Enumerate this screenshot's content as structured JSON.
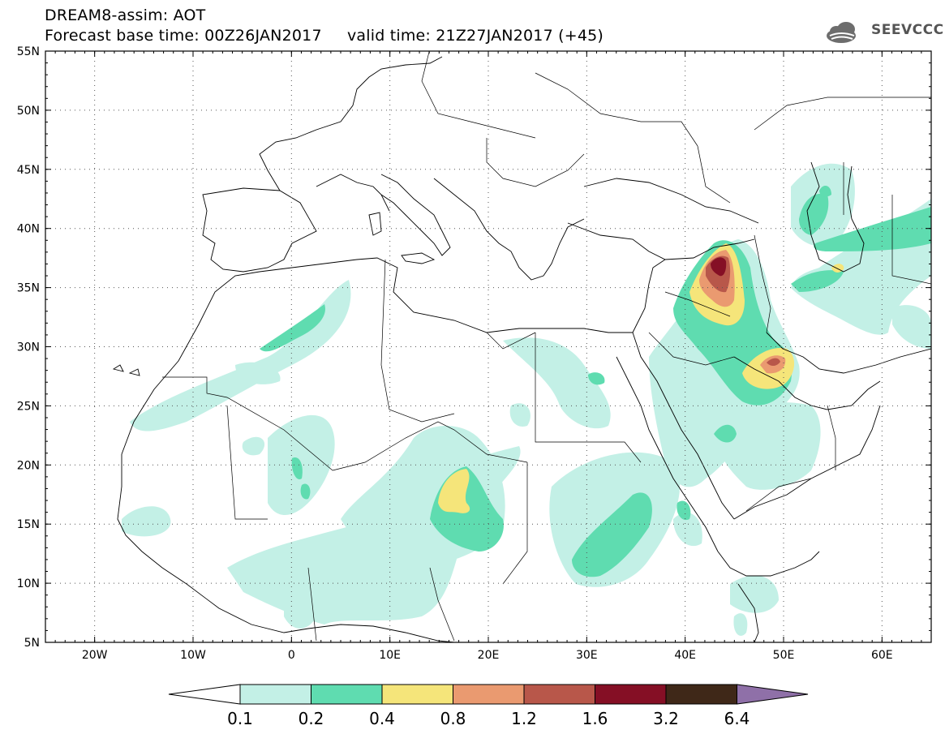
{
  "header": {
    "line1": "DREAM8-assim: AOT",
    "base_time_label": "Forecast base time: 00Z26JAN2017",
    "valid_time_label": "valid time: 21Z27JAN2017 (+45)"
  },
  "logo": {
    "text": "SEEVCCC",
    "icon": "cloud-icon"
  },
  "map": {
    "lon_range": [
      -25,
      65
    ],
    "lat_range": [
      5,
      55
    ],
    "lat_labels": [
      "55N",
      "50N",
      "45N",
      "40N",
      "35N",
      "30N",
      "25N",
      "20N",
      "15N",
      "10N",
      "5N"
    ],
    "lat_values": [
      55,
      50,
      45,
      40,
      35,
      30,
      25,
      20,
      15,
      10,
      5
    ],
    "lon_labels": [
      "20W",
      "10W",
      "0",
      "10E",
      "20E",
      "30E",
      "40E",
      "50E",
      "60E"
    ],
    "lon_values": [
      -20,
      -10,
      0,
      10,
      20,
      30,
      40,
      50,
      60
    ],
    "grid": "dotted"
  },
  "colorbar": {
    "colors": [
      "#c3f0e6",
      "#5fdcb0",
      "#f5e57a",
      "#ea9a70",
      "#b8574a",
      "#850f25",
      "#3f2818",
      "#8f70a8"
    ],
    "labels": [
      "0.1",
      "0.2",
      "0.4",
      "0.8",
      "1.2",
      "1.6",
      "3.2",
      "6.4"
    ],
    "under_color": "#ffffff"
  }
}
